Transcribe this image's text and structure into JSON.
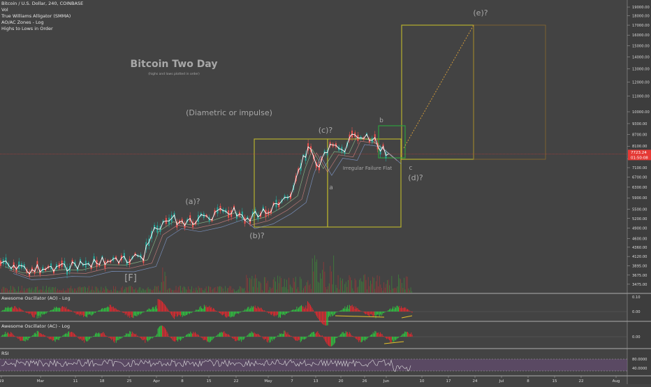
{
  "legend": {
    "symbol": "Bitcoin / U.S. Dollar, 240, COINBASE",
    "vol": "Vol",
    "alligator": "True Williams Alligator (SMMA)",
    "ao_ac_zones": "AO/AC Zones - Log",
    "highs_lows": "Highs to Lows in Order"
  },
  "title": "Bitcoin Two Day",
  "subtitle": "(highs and lows plotted in order)",
  "annotations": {
    "diametric": "(Diametric or impulse)",
    "a_wave": "(a)?",
    "b_wave": "(b)?",
    "c_wave": "(c)?",
    "d_wave": "(d)?",
    "e_wave": "(e)?",
    "F_label": "[F]",
    "small_a": "a",
    "small_b": "b",
    "small_c": "c",
    "irregular": "Irregular Failure Flat"
  },
  "panes": {
    "ao_label": "Awesome Oscillator (AO) - Log",
    "ac_label": "Awesome Oscillator (AC) - Log",
    "rsi_label": "RSI"
  },
  "price_axis": {
    "labels": [
      "19000.00",
      "18000.00",
      "17000.00",
      "16000.00",
      "15000.00",
      "14000.00",
      "13000.00",
      "12000.00",
      "11000.00",
      "10000.00",
      "9300.00",
      "8700.00",
      "8100.00",
      "7500.00",
      "7100.00",
      "6700.00",
      "6300.00",
      "5900.00",
      "5500.00",
      "5200.00",
      "4900.00",
      "4600.00",
      "4360.00",
      "4120.00",
      "3895.00",
      "3675.00",
      "3475.00"
    ],
    "current_price": "7723.24",
    "countdown": "01:50:08"
  },
  "ao_axis": [
    "0.10",
    "0.00"
  ],
  "ac_axis": [
    "0.00"
  ],
  "rsi_axis": [
    "80.0000",
    "40.0000"
  ],
  "time_axis": [
    "19",
    "Mar",
    "11",
    "18",
    "25",
    "Apr",
    "8",
    "15",
    "22",
    "May",
    "7",
    "13",
    "20",
    "26",
    "Jun",
    "10",
    "17",
    "24",
    "Jul",
    "8",
    "15",
    "22",
    "Aug"
  ],
  "colors": {
    "background": "#434343",
    "bull": "#26a69a",
    "bear": "#ef5350",
    "price_line": "#ff0000",
    "box": "#b5b02e",
    "green_box": "#2e9e3e",
    "ao_green": "#2ecc40",
    "ao_red": "#e8292f",
    "rsi_fill": "#6b4f7a",
    "rsi_line": "#e0e0e0",
    "label_grey": "#a8a8a8"
  },
  "chart_data": {
    "type": "line",
    "title": "Bitcoin Two Day",
    "price_path": [
      {
        "date": "2019-02-19",
        "price": 3950
      },
      {
        "date": "2019-02-24",
        "price": 3800
      },
      {
        "date": "2019-03-01",
        "price": 3820
      },
      {
        "date": "2019-03-07",
        "price": 3880
      },
      {
        "date": "2019-03-12",
        "price": 3870
      },
      {
        "date": "2019-03-18",
        "price": 4000
      },
      {
        "date": "2019-03-24",
        "price": 3990
      },
      {
        "date": "2019-03-30",
        "price": 4120
      },
      {
        "date": "2019-04-02",
        "price": 4900
      },
      {
        "date": "2019-04-06",
        "price": 5200
      },
      {
        "date": "2019-04-11",
        "price": 5100
      },
      {
        "date": "2019-04-17",
        "price": 5250
      },
      {
        "date": "2019-04-23",
        "price": 5500
      },
      {
        "date": "2019-04-26",
        "price": 5200
      },
      {
        "date": "2019-05-01",
        "price": 5350
      },
      {
        "date": "2019-05-06",
        "price": 5700
      },
      {
        "date": "2019-05-10",
        "price": 6100
      },
      {
        "date": "2019-05-12",
        "price": 7200
      },
      {
        "date": "2019-05-14",
        "price": 8100
      },
      {
        "date": "2019-05-17",
        "price": 7200
      },
      {
        "date": "2019-05-20",
        "price": 8000
      },
      {
        "date": "2019-05-24",
        "price": 7900
      },
      {
        "date": "2019-05-26",
        "price": 8700
      },
      {
        "date": "2019-05-30",
        "price": 8600
      },
      {
        "date": "2019-06-02",
        "price": 8200
      },
      {
        "date": "2019-06-05",
        "price": 7723
      }
    ],
    "ylim": [
      3400,
      19500
    ],
    "xlabel": "",
    "ylabel": "",
    "scale": "log"
  }
}
